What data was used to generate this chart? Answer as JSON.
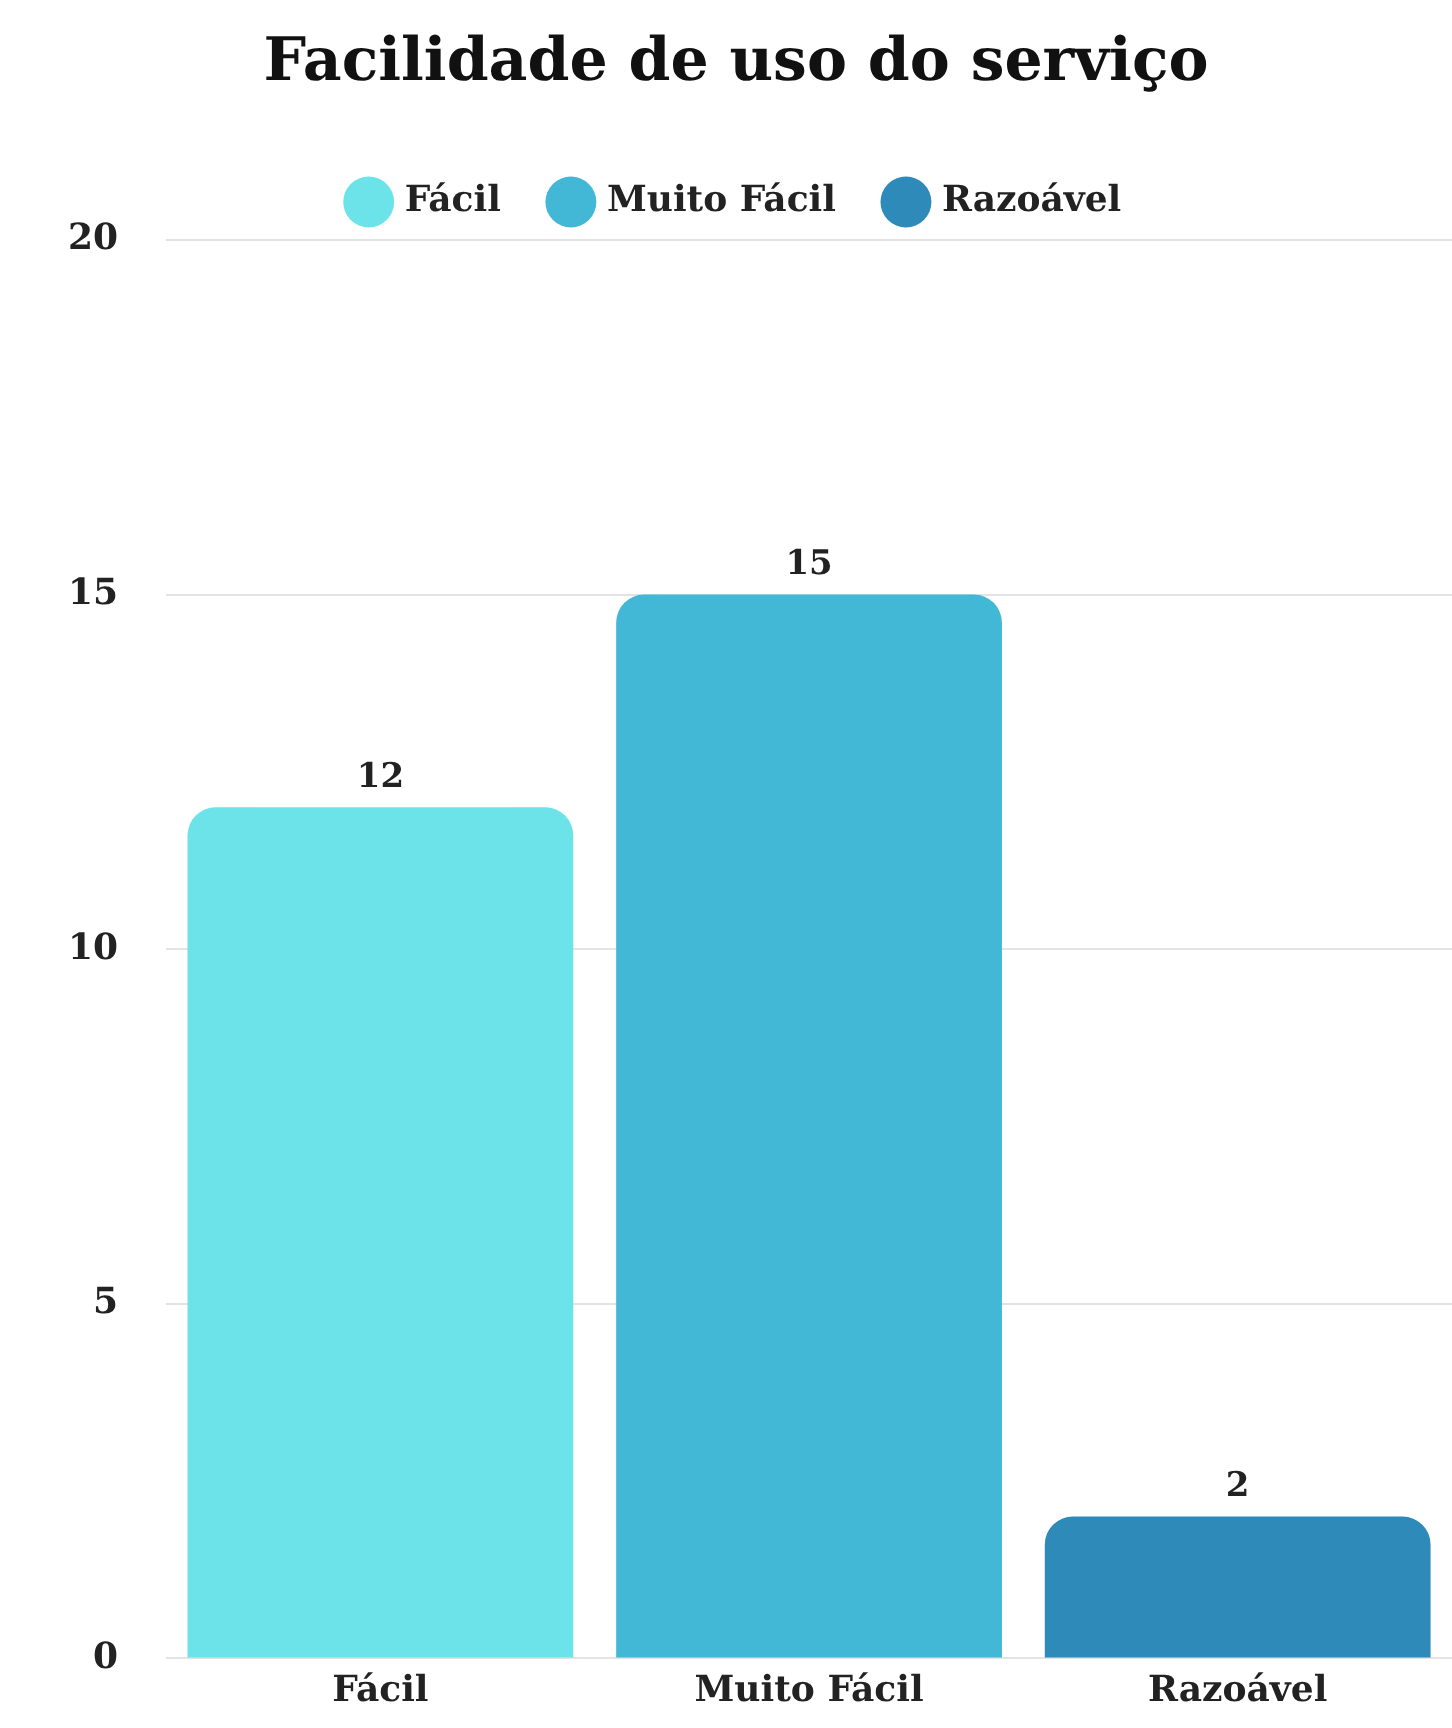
{
  "chart_data": {
    "type": "bar",
    "title": "Facilidade de uso do serviço",
    "categories": [
      "Fácil",
      "Muito Fácil",
      "Razoável"
    ],
    "series": [
      {
        "name": "Fácil",
        "color": "#6ce3e8",
        "values": [
          12,
          null,
          null
        ]
      },
      {
        "name": "Muito Fácil",
        "color": "#43b8d6",
        "values": [
          null,
          15,
          null
        ]
      },
      {
        "name": "Razoável",
        "color": "#2e8ab8",
        "values": [
          null,
          null,
          2
        ]
      }
    ],
    "ylim": [
      0,
      20
    ],
    "yticks": [
      0,
      5,
      10,
      15,
      20
    ],
    "grid": "y",
    "legend": "top",
    "data_labels": true
  }
}
